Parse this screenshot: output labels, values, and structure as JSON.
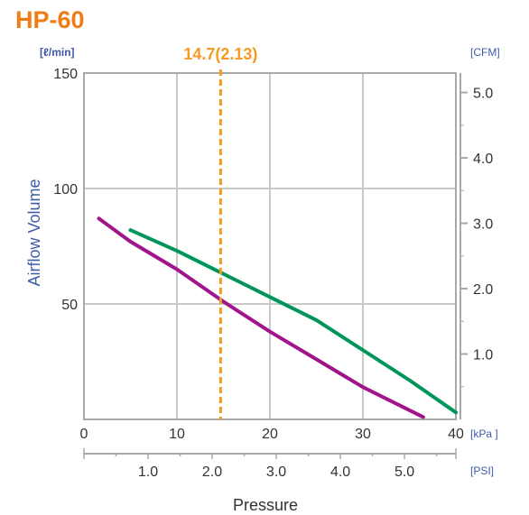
{
  "chart_data": {
    "type": "line",
    "title": "HP-60",
    "xlabel": "Pressure",
    "ylabel": "Airflow Volume",
    "x_unit_primary": "[kPa ]",
    "x_unit_secondary": "[PSI]",
    "y_unit_left": "[ℓ/min]",
    "y_unit_right": "[CFM]",
    "xlim": [
      0,
      40
    ],
    "ylim": [
      0,
      150
    ],
    "x_ticks_kpa": [
      "0",
      "10",
      "20",
      "30",
      "40"
    ],
    "x_ticks_psi": [
      "1.0",
      "2.0",
      "3.0",
      "4.0",
      "5.0"
    ],
    "x_ticks_psi_values": [
      1.0,
      2.0,
      3.0,
      4.0,
      5.0
    ],
    "y_ticks_left": [
      "150",
      "100",
      "50"
    ],
    "y_ticks_left_values": [
      150,
      100,
      50
    ],
    "y_ticks_right": [
      "5.0",
      "4.0",
      "3.0",
      "2.0",
      "1.0"
    ],
    "y_ticks_right_values": [
      5.0,
      4.0,
      3.0,
      2.0,
      1.0
    ],
    "grid": true,
    "marker": {
      "label": "14.7(2.13)",
      "x": 14.7
    },
    "series": [
      {
        "color": "#00965a",
        "x": [
          5,
          10,
          15,
          20,
          25,
          30,
          35,
          40
        ],
        "y": [
          82,
          73,
          63,
          53,
          43,
          30,
          17,
          3
        ]
      },
      {
        "color": "#a0158c",
        "x": [
          1.6,
          5,
          10,
          15,
          20,
          25,
          30,
          35,
          36.5
        ],
        "y": [
          87,
          77,
          65,
          51,
          38,
          26,
          14,
          4,
          1
        ]
      }
    ],
    "colors": {
      "title": "#f07c14",
      "marker": "#f59a23",
      "axis_label": "#3f5aa8",
      "grid": "#c9c9c9",
      "frame": "#a8a8a8"
    }
  }
}
